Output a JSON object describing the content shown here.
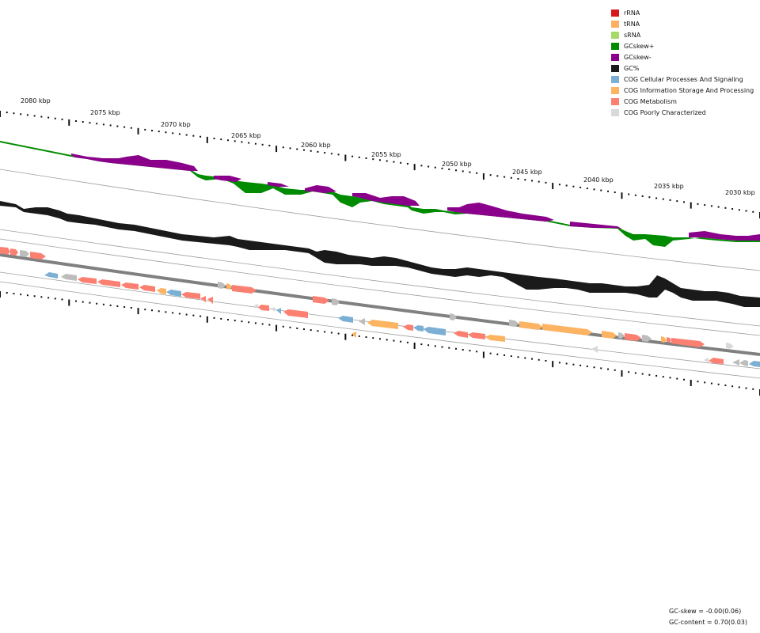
{
  "legend": [
    {
      "label": "rRNA",
      "color": "#d7191c"
    },
    {
      "label": "tRNA",
      "color": "#fdae61"
    },
    {
      "label": "sRNA",
      "color": "#a6d96a"
    },
    {
      "label": "GCskew+",
      "color": "#008b00"
    },
    {
      "label": "GCskew-",
      "color": "#8b008b"
    },
    {
      "label": "GC%",
      "color": "#1a1a1a"
    },
    {
      "label": "COG Cellular Processes And Signaling",
      "color": "#7bafd4"
    },
    {
      "label": "COG Information Storage And Processing",
      "color": "#fdb462"
    },
    {
      "label": "COG Metabolism",
      "color": "#fb8072"
    },
    {
      "label": "COG Poorly Characterized",
      "color": "#d9d9d9"
    }
  ],
  "scale": {
    "labels": [
      "2080 kbp",
      "2075 kbp",
      "2070 kbp",
      "2065 kbp",
      "2060 kbp",
      "2055 kbp",
      "2050 kbp",
      "2045 kbp",
      "2040 kbp",
      "2035 kbp",
      "2030 kbp"
    ]
  },
  "footer": {
    "gc_skew": "GC-skew = -0.00(0.06)",
    "gc_content": "GC-content = 0.70(0.03)"
  }
}
